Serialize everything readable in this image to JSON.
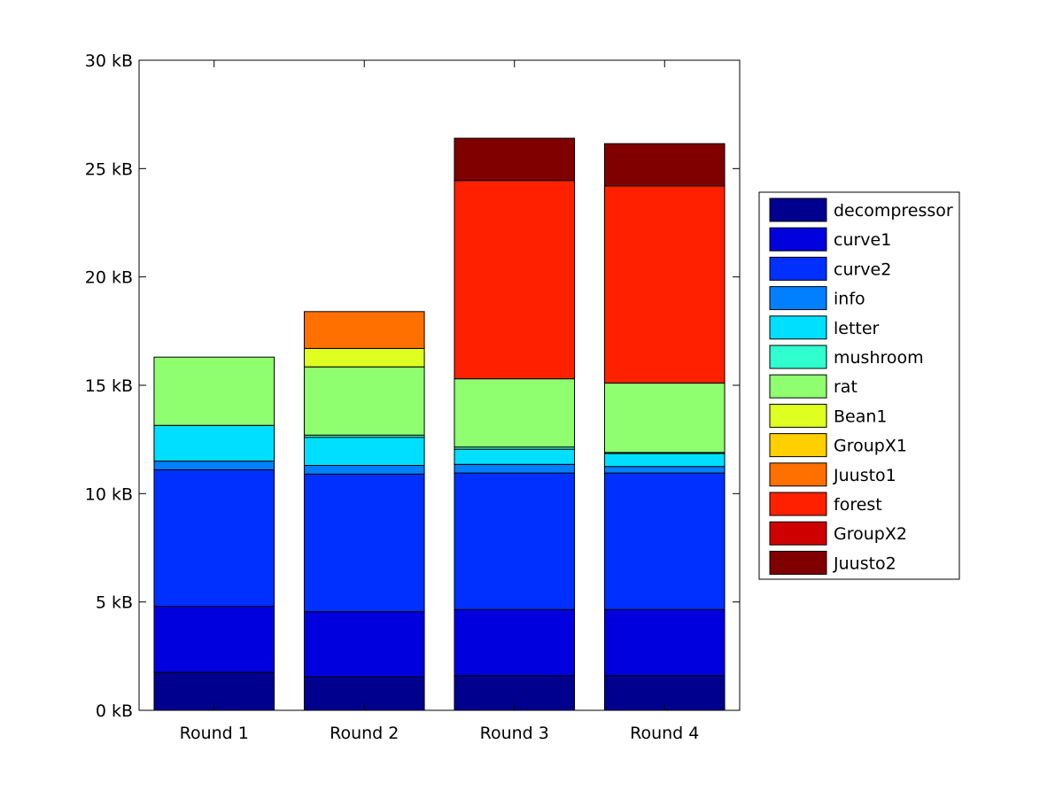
{
  "chart_data": {
    "type": "bar",
    "stacked": true,
    "title": "",
    "xlabel": "",
    "ylabel": "",
    "categories": [
      "Round 1",
      "Round 2",
      "Round 3",
      "Round 4"
    ],
    "ylim": [
      0,
      30
    ],
    "y_ticks": [
      0,
      5,
      10,
      15,
      20,
      25,
      30
    ],
    "y_tick_labels": [
      "0 kB",
      "5 kB",
      "10 kB",
      "15 kB",
      "20 kB",
      "25 kB",
      "30 kB"
    ],
    "grid": false,
    "legend_position": "outside-right",
    "series": [
      {
        "name": "decompressor",
        "color": "#00008f",
        "values": [
          1.75,
          1.55,
          1.6,
          1.6
        ]
      },
      {
        "name": "curve1",
        "color": "#0000df",
        "values": [
          3.05,
          3.0,
          3.05,
          3.05
        ]
      },
      {
        "name": "curve2",
        "color": "#0030ff",
        "values": [
          6.3,
          6.35,
          6.3,
          6.3
        ]
      },
      {
        "name": "info",
        "color": "#0080ff",
        "values": [
          0.4,
          0.4,
          0.4,
          0.3
        ]
      },
      {
        "name": "letter",
        "color": "#00dfff",
        "values": [
          1.65,
          1.3,
          0.7,
          0.6
        ]
      },
      {
        "name": "mushroom",
        "color": "#30ffcf",
        "values": [
          0.0,
          0.1,
          0.1,
          0.05
        ]
      },
      {
        "name": "rat",
        "color": "#8fff70",
        "values": [
          3.15,
          3.15,
          3.15,
          3.2
        ]
      },
      {
        "name": "Bean1",
        "color": "#dfff20",
        "values": [
          0.0,
          0.85,
          0.0,
          0.0
        ]
      },
      {
        "name": "GroupX1",
        "color": "#ffcf00",
        "values": [
          0.0,
          0.0,
          0.0,
          0.0
        ]
      },
      {
        "name": "Juusto1",
        "color": "#ff7000",
        "values": [
          0.0,
          1.7,
          0.0,
          0.0
        ]
      },
      {
        "name": "forest",
        "color": "#ff2000",
        "values": [
          0.0,
          0.0,
          9.15,
          9.1
        ]
      },
      {
        "name": "GroupX2",
        "color": "#cf0000",
        "values": [
          0.0,
          0.0,
          0.0,
          0.0
        ]
      },
      {
        "name": "Juusto2",
        "color": "#800000",
        "values": [
          0.0,
          0.0,
          1.95,
          1.95
        ]
      }
    ]
  }
}
